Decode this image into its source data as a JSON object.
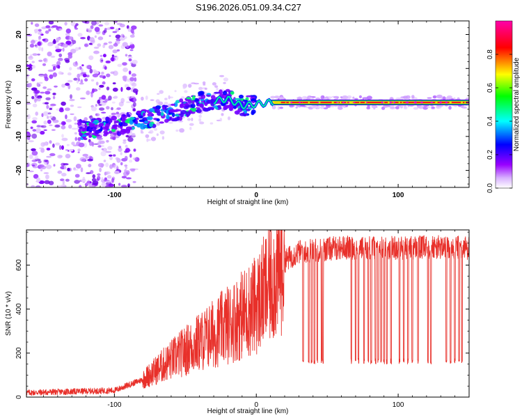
{
  "title": "S196.2026.051.09.34.C27",
  "chart_data": [
    {
      "type": "heatmap",
      "name": "spectrogram",
      "xlabel": "Height of straight line (km)",
      "ylabel": "Frequency (Hz)",
      "xlim": [
        -162,
        150
      ],
      "ylim": [
        -25,
        24
      ],
      "xticks": [
        -100,
        0,
        100
      ],
      "yticks": [
        -20,
        -10,
        0,
        10,
        20
      ],
      "ridge": [
        {
          "x": -120,
          "f": -8
        },
        {
          "x": -100,
          "f": -7
        },
        {
          "x": -80,
          "f": -5
        },
        {
          "x": -60,
          "f": -3
        },
        {
          "x": -40,
          "f": 0
        },
        {
          "x": -20,
          "f": 1
        },
        {
          "x": -10,
          "f": -1
        },
        {
          "x": 0,
          "f": -0.5
        },
        {
          "x": 10,
          "f": 0
        },
        {
          "x": 150,
          "f": 0
        }
      ],
      "colorbar": {
        "label": "Normalized spectral amplitude",
        "range": [
          0,
          1
        ],
        "ticks": [
          "0.0",
          "0.2",
          "0.4",
          "0.6",
          "0.8"
        ],
        "colors": [
          "#ffffff",
          "#9900ff",
          "#0000ff",
          "#00ffff",
          "#00ff00",
          "#ffff00",
          "#ff0000",
          "#ff00aa"
        ]
      }
    },
    {
      "type": "line",
      "name": "snr",
      "xlabel": "Height of straight line (km)",
      "ylabel": "SNR (10 * v/v)",
      "xlim": [
        -162,
        150
      ],
      "ylim": [
        0,
        760
      ],
      "xticks": [
        -100,
        0,
        100
      ],
      "yticks": [
        0,
        200,
        400,
        600
      ],
      "color": "#e8302a",
      "envelope": [
        {
          "x": -162,
          "y": 20
        },
        {
          "x": -100,
          "y": 30
        },
        {
          "x": -80,
          "y": 80
        },
        {
          "x": -60,
          "y": 170
        },
        {
          "x": -40,
          "y": 250
        },
        {
          "x": -20,
          "y": 330
        },
        {
          "x": 0,
          "y": 420
        },
        {
          "x": 10,
          "y": 520
        },
        {
          "x": 20,
          "y": 620
        },
        {
          "x": 30,
          "y": 660
        },
        {
          "x": 60,
          "y": 680
        },
        {
          "x": 150,
          "y": 680
        }
      ],
      "dropouts_x": [
        33,
        37,
        39,
        41,
        43,
        46,
        47,
        67,
        70,
        72,
        76,
        79,
        81,
        84,
        86,
        88,
        90,
        92,
        95,
        101,
        104,
        107,
        110,
        114,
        121,
        123,
        134,
        137,
        140,
        143,
        145
      ],
      "dropout_y": 150
    }
  ]
}
